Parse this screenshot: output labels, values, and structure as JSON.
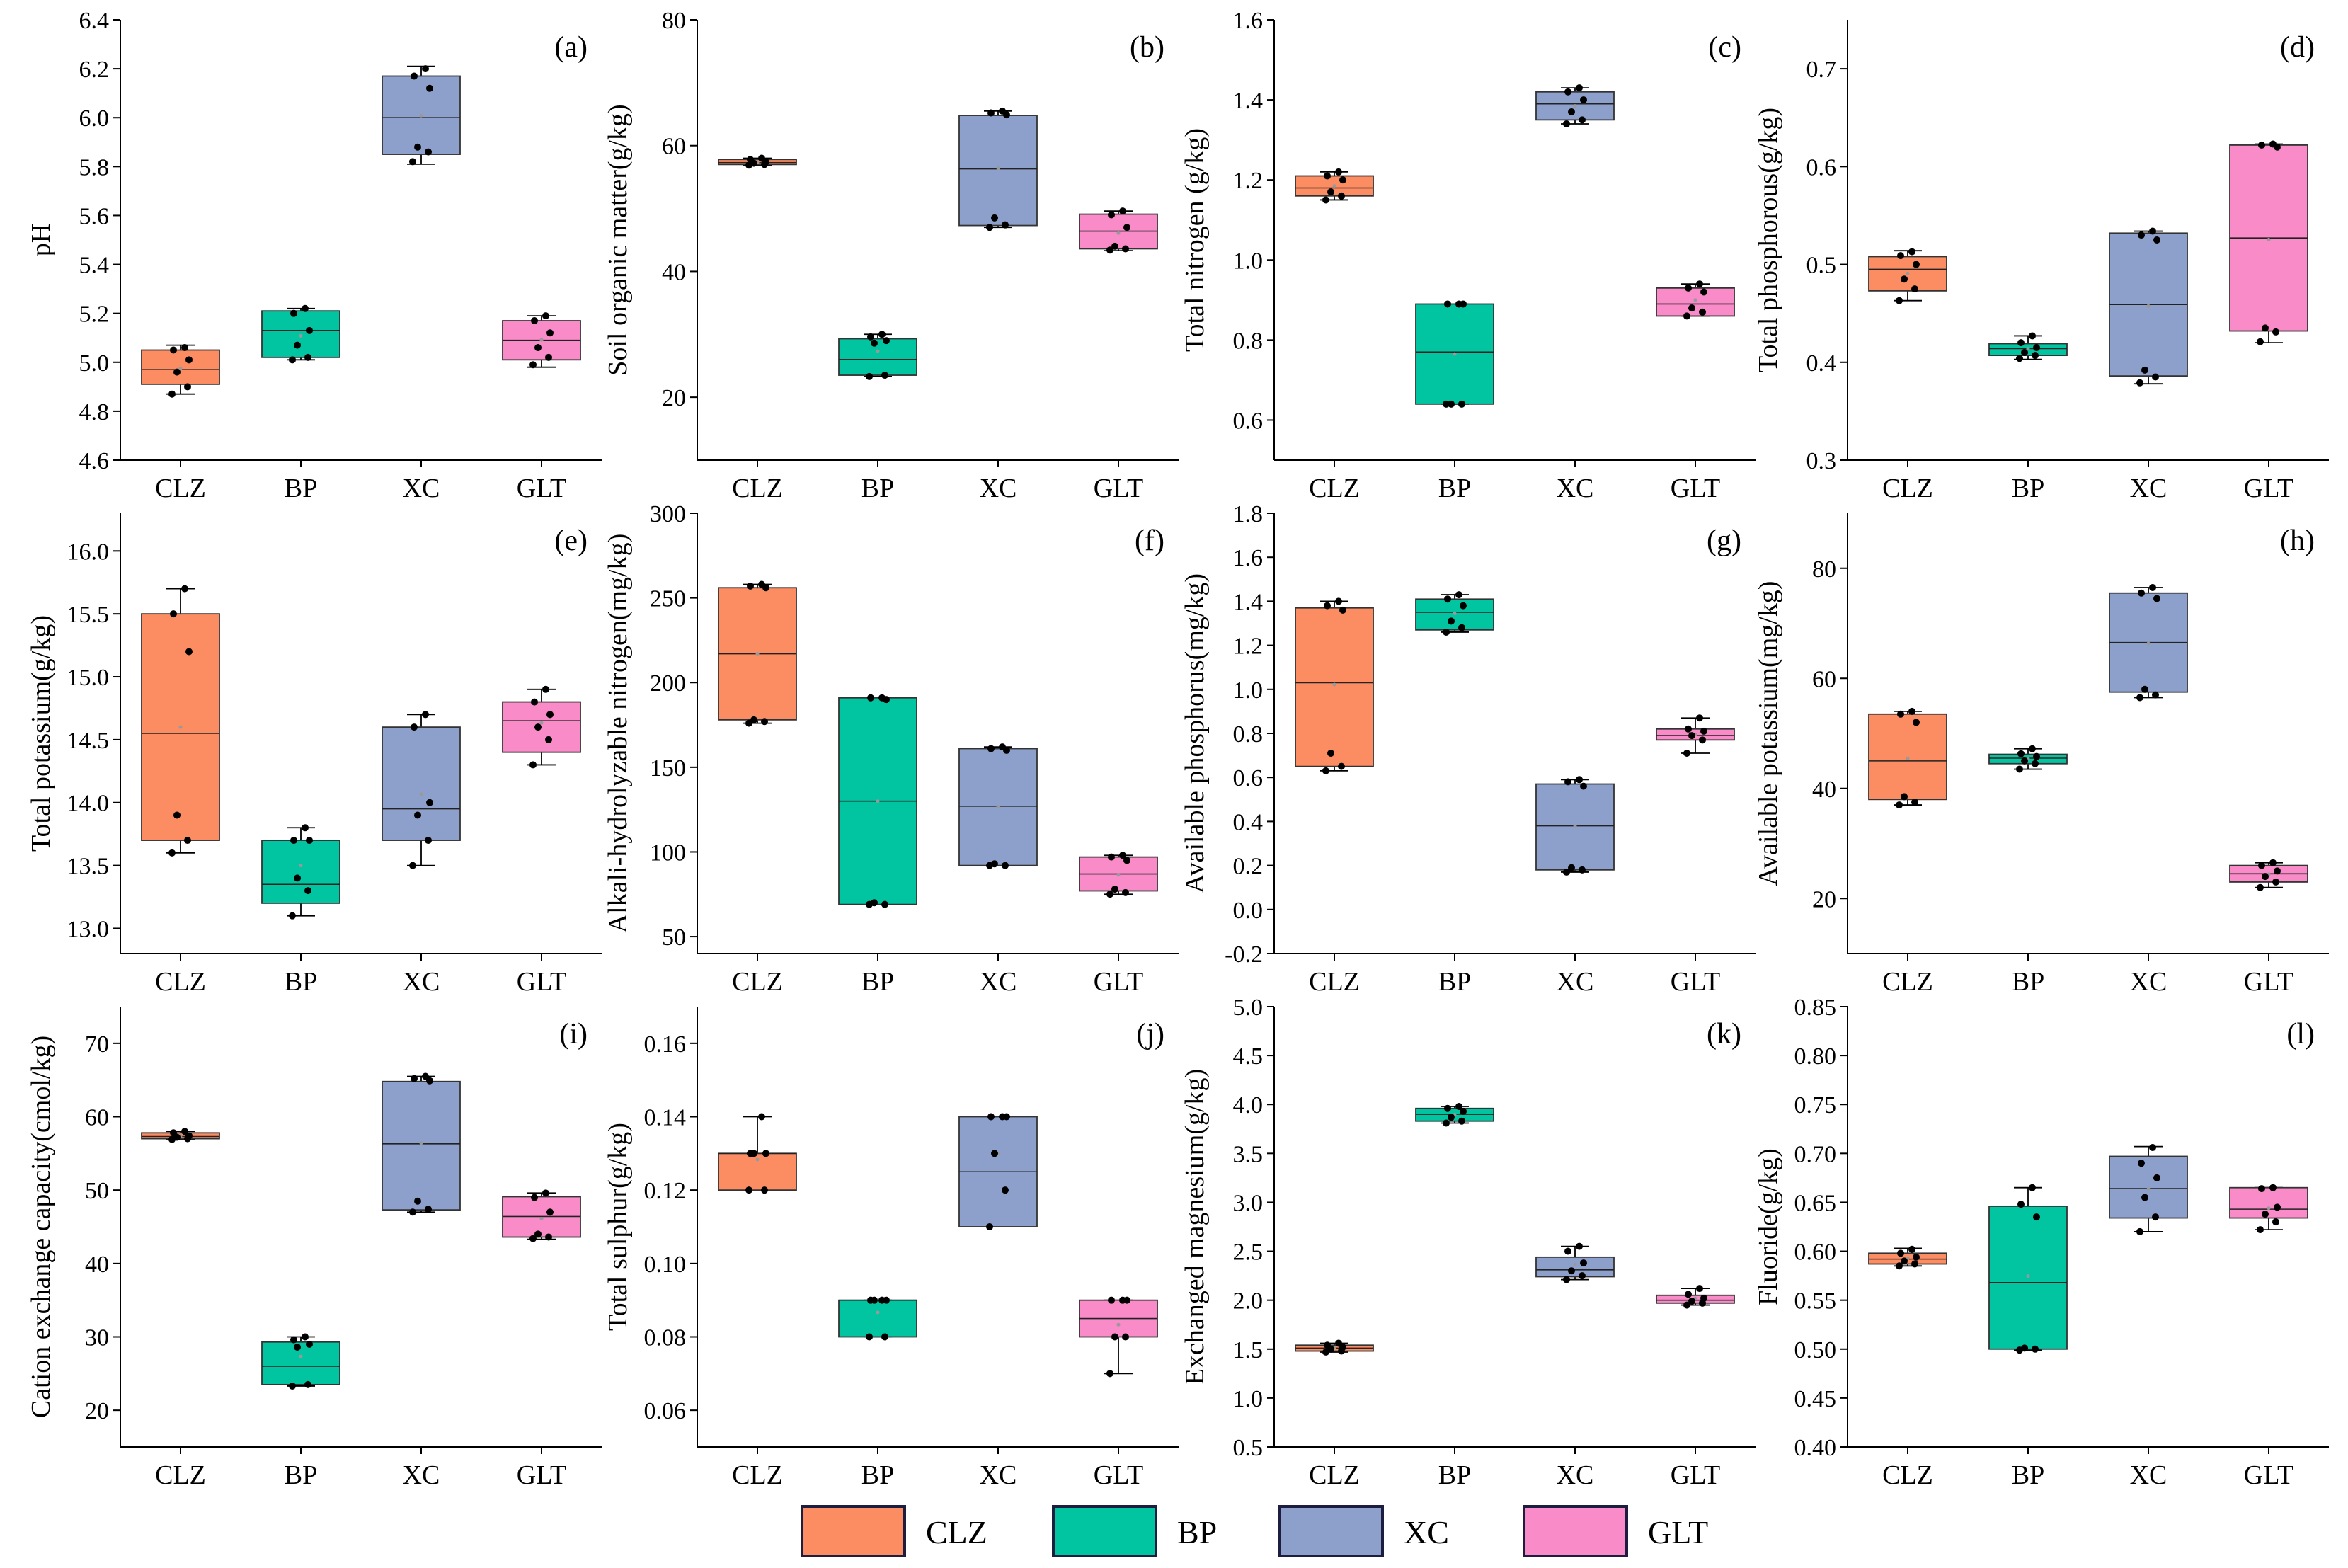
{
  "colors": {
    "CLZ": "#fc8d62",
    "BP": "#00c5a0",
    "XC": "#8da0cb",
    "GLT": "#f88bc8",
    "axis": "#000000"
  },
  "legend": {
    "items": [
      {
        "name": "CLZ",
        "label": "CLZ"
      },
      {
        "name": "BP",
        "label": "BP"
      },
      {
        "name": "XC",
        "label": "XC"
      },
      {
        "name": "GLT",
        "label": "GLT"
      }
    ]
  },
  "chart_data": [
    {
      "type": "box",
      "letter": "(a)",
      "ylabel": "pH",
      "ylim": [
        4.6,
        6.4
      ],
      "yticks": [
        4.6,
        4.8,
        5.0,
        5.2,
        5.4,
        5.6,
        5.8,
        6.0,
        6.2,
        6.4
      ],
      "decimals": 1,
      "categories": [
        "CLZ",
        "BP",
        "XC",
        "GLT"
      ],
      "boxes": [
        {
          "group": "CLZ",
          "min": 4.87,
          "q1": 4.91,
          "median": 4.97,
          "q3": 5.05,
          "max": 5.07,
          "points": [
            4.87,
            4.9,
            4.96,
            5.01,
            5.05,
            5.06
          ]
        },
        {
          "group": "BP",
          "min": 5.01,
          "q1": 5.02,
          "median": 5.13,
          "q3": 5.21,
          "max": 5.22,
          "points": [
            5.01,
            5.02,
            5.07,
            5.13,
            5.2,
            5.22
          ]
        },
        {
          "group": "XC",
          "min": 5.81,
          "q1": 5.85,
          "median": 6.0,
          "q3": 6.17,
          "max": 6.21,
          "points": [
            5.82,
            5.86,
            5.88,
            6.12,
            6.17,
            6.2
          ]
        },
        {
          "group": "GLT",
          "min": 4.98,
          "q1": 5.01,
          "median": 5.09,
          "q3": 5.17,
          "max": 5.19,
          "points": [
            4.99,
            5.02,
            5.06,
            5.12,
            5.17,
            5.19
          ]
        }
      ]
    },
    {
      "type": "box",
      "letter": "(b)",
      "ylabel": "Soil organic matter(g/kg)",
      "ylim": [
        10,
        80
      ],
      "yticks": [
        20,
        40,
        60,
        80
      ],
      "decimals": 0,
      "categories": [
        "CLZ",
        "BP",
        "XC",
        "GLT"
      ],
      "boxes": [
        {
          "group": "CLZ",
          "min": 56.9,
          "q1": 57.0,
          "median": 57.3,
          "q3": 57.8,
          "max": 58.0,
          "points": [
            56.9,
            57.0,
            57.2,
            57.4,
            57.8,
            58.0
          ]
        },
        {
          "group": "BP",
          "min": 23.3,
          "q1": 23.5,
          "median": 26.0,
          "q3": 29.3,
          "max": 30.0,
          "points": [
            23.3,
            23.5,
            28.6,
            29.0,
            29.6,
            30.0
          ]
        },
        {
          "group": "XC",
          "min": 47.0,
          "q1": 47.3,
          "median": 56.3,
          "q3": 64.8,
          "max": 65.5,
          "points": [
            47.0,
            47.4,
            48.5,
            64.9,
            65.2,
            65.5
          ]
        },
        {
          "group": "GLT",
          "min": 43.3,
          "q1": 43.6,
          "median": 46.4,
          "q3": 49.1,
          "max": 49.6,
          "points": [
            43.4,
            43.6,
            44.0,
            47.0,
            49.0,
            49.6
          ]
        }
      ]
    },
    {
      "type": "box",
      "letter": "(c)",
      "ylabel": "Total nitrogen (g/kg)",
      "ylim": [
        0.5,
        1.6
      ],
      "yticks": [
        0.6,
        0.8,
        1.0,
        1.2,
        1.4,
        1.6
      ],
      "decimals": 1,
      "categories": [
        "CLZ",
        "BP",
        "XC",
        "GLT"
      ],
      "boxes": [
        {
          "group": "CLZ",
          "min": 1.15,
          "q1": 1.16,
          "median": 1.18,
          "q3": 1.21,
          "max": 1.22,
          "points": [
            1.15,
            1.16,
            1.17,
            1.2,
            1.21,
            1.22
          ]
        },
        {
          "group": "BP",
          "min": 0.64,
          "q1": 0.64,
          "median": 0.77,
          "q3": 0.89,
          "max": 0.89,
          "points": [
            0.64,
            0.64,
            0.64,
            0.89,
            0.89,
            0.89
          ]
        },
        {
          "group": "XC",
          "min": 1.34,
          "q1": 1.35,
          "median": 1.39,
          "q3": 1.42,
          "max": 1.43,
          "points": [
            1.34,
            1.35,
            1.37,
            1.4,
            1.42,
            1.43
          ]
        },
        {
          "group": "GLT",
          "min": 0.86,
          "q1": 0.86,
          "median": 0.89,
          "q3": 0.93,
          "max": 0.94,
          "points": [
            0.86,
            0.87,
            0.88,
            0.92,
            0.93,
            0.94
          ]
        }
      ]
    },
    {
      "type": "box",
      "letter": "(d)",
      "ylabel": "Total phosphorous(g/kg)",
      "ylim": [
        0.3,
        0.75
      ],
      "yticks": [
        0.3,
        0.4,
        0.5,
        0.6,
        0.7
      ],
      "decimals": 1,
      "categories": [
        "CLZ",
        "BP",
        "XC",
        "GLT"
      ],
      "boxes": [
        {
          "group": "CLZ",
          "min": 0.463,
          "q1": 0.473,
          "median": 0.495,
          "q3": 0.508,
          "max": 0.514,
          "points": [
            0.463,
            0.475,
            0.485,
            0.5,
            0.509,
            0.513
          ]
        },
        {
          "group": "BP",
          "min": 0.403,
          "q1": 0.407,
          "median": 0.414,
          "q3": 0.419,
          "max": 0.427,
          "points": [
            0.404,
            0.407,
            0.41,
            0.415,
            0.42,
            0.427
          ]
        },
        {
          "group": "XC",
          "min": 0.378,
          "q1": 0.386,
          "median": 0.459,
          "q3": 0.532,
          "max": 0.534,
          "points": [
            0.379,
            0.385,
            0.392,
            0.525,
            0.53,
            0.534
          ]
        },
        {
          "group": "GLT",
          "min": 0.42,
          "q1": 0.432,
          "median": 0.527,
          "q3": 0.622,
          "max": 0.623,
          "points": [
            0.421,
            0.431,
            0.435,
            0.62,
            0.622,
            0.623
          ]
        }
      ]
    },
    {
      "type": "box",
      "letter": "(e)",
      "ylabel": "Total potassium(g/kg)",
      "ylim": [
        12.8,
        16.3
      ],
      "yticks": [
        13.0,
        13.5,
        14.0,
        14.5,
        15.0,
        15.5,
        16.0
      ],
      "decimals": 1,
      "categories": [
        "CLZ",
        "BP",
        "XC",
        "GLT"
      ],
      "boxes": [
        {
          "group": "CLZ",
          "min": 13.6,
          "q1": 13.7,
          "median": 14.55,
          "q3": 15.5,
          "max": 15.7,
          "points": [
            13.6,
            13.7,
            13.9,
            15.2,
            15.5,
            15.7
          ]
        },
        {
          "group": "BP",
          "min": 13.1,
          "q1": 13.2,
          "median": 13.35,
          "q3": 13.7,
          "max": 13.8,
          "points": [
            13.1,
            13.3,
            13.4,
            13.7,
            13.7,
            13.8
          ]
        },
        {
          "group": "XC",
          "min": 13.5,
          "q1": 13.7,
          "median": 13.95,
          "q3": 14.6,
          "max": 14.7,
          "points": [
            13.5,
            13.7,
            13.9,
            14.0,
            14.6,
            14.7
          ]
        },
        {
          "group": "GLT",
          "min": 14.3,
          "q1": 14.4,
          "median": 14.65,
          "q3": 14.8,
          "max": 14.9,
          "points": [
            14.3,
            14.5,
            14.6,
            14.7,
            14.8,
            14.9
          ]
        }
      ]
    },
    {
      "type": "box",
      "letter": "(f)",
      "ylabel": "Alkali-hydrolyzable nitrogen(mg/kg)",
      "ylim": [
        40,
        300
      ],
      "yticks": [
        50,
        100,
        150,
        200,
        250,
        300
      ],
      "decimals": 0,
      "categories": [
        "CLZ",
        "BP",
        "XC",
        "GLT"
      ],
      "boxes": [
        {
          "group": "CLZ",
          "min": 176,
          "q1": 178,
          "median": 217,
          "q3": 256,
          "max": 258,
          "points": [
            176,
            177,
            178,
            256,
            257,
            258
          ]
        },
        {
          "group": "BP",
          "min": 69,
          "q1": 69,
          "median": 130,
          "q3": 191,
          "max": 191,
          "points": [
            69,
            69,
            70,
            190,
            191,
            191
          ]
        },
        {
          "group": "XC",
          "min": 92,
          "q1": 92,
          "median": 127,
          "q3": 161,
          "max": 162,
          "points": [
            92,
            92,
            93,
            160,
            161,
            162
          ]
        },
        {
          "group": "GLT",
          "min": 75,
          "q1": 77,
          "median": 87,
          "q3": 97,
          "max": 98,
          "points": [
            75,
            76,
            78,
            95,
            97,
            98
          ]
        }
      ]
    },
    {
      "type": "box",
      "letter": "(g)",
      "ylabel": "Available phosphorus(mg/kg)",
      "ylim": [
        -0.2,
        1.8
      ],
      "yticks": [
        -0.2,
        0.0,
        0.2,
        0.4,
        0.6,
        0.8,
        1.0,
        1.2,
        1.4,
        1.6,
        1.8
      ],
      "decimals": 1,
      "categories": [
        "CLZ",
        "BP",
        "XC",
        "GLT"
      ],
      "boxes": [
        {
          "group": "CLZ",
          "min": 0.63,
          "q1": 0.65,
          "median": 1.03,
          "q3": 1.37,
          "max": 1.4,
          "points": [
            0.63,
            0.65,
            0.71,
            1.36,
            1.38,
            1.4
          ]
        },
        {
          "group": "BP",
          "min": 1.26,
          "q1": 1.27,
          "median": 1.35,
          "q3": 1.41,
          "max": 1.43,
          "points": [
            1.26,
            1.28,
            1.31,
            1.38,
            1.41,
            1.43
          ]
        },
        {
          "group": "XC",
          "min": 0.17,
          "q1": 0.18,
          "median": 0.38,
          "q3": 0.57,
          "max": 0.59,
          "points": [
            0.17,
            0.18,
            0.19,
            0.56,
            0.58,
            0.59
          ]
        },
        {
          "group": "GLT",
          "min": 0.71,
          "q1": 0.77,
          "median": 0.79,
          "q3": 0.82,
          "max": 0.87,
          "points": [
            0.71,
            0.77,
            0.79,
            0.81,
            0.82,
            0.87
          ]
        }
      ]
    },
    {
      "type": "box",
      "letter": "(h)",
      "ylabel": "Available potassium(mg/kg)",
      "ylim": [
        10,
        90
      ],
      "yticks": [
        20,
        40,
        60,
        80
      ],
      "decimals": 0,
      "categories": [
        "CLZ",
        "BP",
        "XC",
        "GLT"
      ],
      "boxes": [
        {
          "group": "CLZ",
          "min": 37,
          "q1": 38,
          "median": 45,
          "q3": 53.5,
          "max": 54,
          "points": [
            37,
            37.5,
            38.5,
            52,
            53.5,
            54
          ]
        },
        {
          "group": "BP",
          "min": 43.5,
          "q1": 44.5,
          "median": 45.5,
          "q3": 46.2,
          "max": 47.2,
          "points": [
            43.5,
            44.5,
            45,
            45.8,
            46.3,
            47.2
          ]
        },
        {
          "group": "XC",
          "min": 56.5,
          "q1": 57.5,
          "median": 66.5,
          "q3": 75.5,
          "max": 76.5,
          "points": [
            56.5,
            57,
            58,
            74.5,
            75.5,
            76.5
          ]
        },
        {
          "group": "GLT",
          "min": 22,
          "q1": 23,
          "median": 24.5,
          "q3": 26,
          "max": 26.5,
          "points": [
            22,
            23,
            24,
            25,
            26,
            26.5
          ]
        }
      ]
    },
    {
      "type": "box",
      "letter": "(i)",
      "ylabel": "Cation exchange capacity(cmol/kg)",
      "ylim": [
        15,
        75
      ],
      "yticks": [
        20,
        30,
        40,
        50,
        60,
        70
      ],
      "decimals": 0,
      "categories": [
        "CLZ",
        "BP",
        "XC",
        "GLT"
      ],
      "boxes": [
        {
          "group": "CLZ",
          "min": 56.9,
          "q1": 57.0,
          "median": 57.3,
          "q3": 57.8,
          "max": 58.0,
          "points": [
            56.9,
            57.0,
            57.2,
            57.4,
            57.8,
            58.0
          ]
        },
        {
          "group": "BP",
          "min": 23.3,
          "q1": 23.5,
          "median": 26.0,
          "q3": 29.3,
          "max": 30.0,
          "points": [
            23.3,
            23.5,
            28.6,
            29.0,
            29.6,
            30.0
          ]
        },
        {
          "group": "XC",
          "min": 47.0,
          "q1": 47.3,
          "median": 56.3,
          "q3": 64.8,
          "max": 65.5,
          "points": [
            47.0,
            47.4,
            48.5,
            64.9,
            65.2,
            65.5
          ]
        },
        {
          "group": "GLT",
          "min": 43.3,
          "q1": 43.6,
          "median": 46.4,
          "q3": 49.1,
          "max": 49.6,
          "points": [
            43.4,
            43.6,
            44.0,
            47.0,
            49.0,
            49.6
          ]
        }
      ]
    },
    {
      "type": "box",
      "letter": "(j)",
      "ylabel": "Total sulphur(g/kg)",
      "ylim": [
        0.05,
        0.17
      ],
      "yticks": [
        0.06,
        0.08,
        0.1,
        0.12,
        0.14,
        0.16
      ],
      "decimals": 2,
      "categories": [
        "CLZ",
        "BP",
        "XC",
        "GLT"
      ],
      "boxes": [
        {
          "group": "CLZ",
          "min": 0.12,
          "q1": 0.12,
          "median": 0.13,
          "q3": 0.13,
          "max": 0.14,
          "points": [
            0.12,
            0.12,
            0.13,
            0.13,
            0.13,
            0.14
          ]
        },
        {
          "group": "BP",
          "min": 0.08,
          "q1": 0.08,
          "median": 0.09,
          "q3": 0.09,
          "max": 0.09,
          "points": [
            0.08,
            0.08,
            0.09,
            0.09,
            0.09,
            0.09
          ]
        },
        {
          "group": "XC",
          "min": 0.11,
          "q1": 0.11,
          "median": 0.125,
          "q3": 0.14,
          "max": 0.14,
          "points": [
            0.11,
            0.12,
            0.13,
            0.14,
            0.14,
            0.14
          ]
        },
        {
          "group": "GLT",
          "min": 0.07,
          "q1": 0.08,
          "median": 0.085,
          "q3": 0.09,
          "max": 0.09,
          "points": [
            0.07,
            0.08,
            0.08,
            0.09,
            0.09,
            0.09
          ]
        }
      ]
    },
    {
      "type": "box",
      "letter": "(k)",
      "ylabel": "Exchanged magnesium(g/kg)",
      "ylim": [
        0.5,
        5.0
      ],
      "yticks": [
        0.5,
        1.0,
        1.5,
        2.0,
        2.5,
        3.0,
        3.5,
        4.0,
        4.5,
        5.0
      ],
      "decimals": 1,
      "categories": [
        "CLZ",
        "BP",
        "XC",
        "GLT"
      ],
      "boxes": [
        {
          "group": "CLZ",
          "min": 1.47,
          "q1": 1.48,
          "median": 1.51,
          "q3": 1.54,
          "max": 1.56,
          "points": [
            1.47,
            1.48,
            1.5,
            1.52,
            1.54,
            1.56
          ]
        },
        {
          "group": "BP",
          "min": 3.81,
          "q1": 3.83,
          "median": 3.9,
          "q3": 3.96,
          "max": 3.98,
          "points": [
            3.81,
            3.83,
            3.87,
            3.93,
            3.96,
            3.98
          ]
        },
        {
          "group": "XC",
          "min": 2.21,
          "q1": 2.24,
          "median": 2.31,
          "q3": 2.44,
          "max": 2.55,
          "points": [
            2.21,
            2.25,
            2.3,
            2.38,
            2.5,
            2.55
          ]
        },
        {
          "group": "GLT",
          "min": 1.95,
          "q1": 1.97,
          "median": 2.0,
          "q3": 2.05,
          "max": 2.12,
          "points": [
            1.95,
            1.97,
            1.99,
            2.02,
            2.06,
            2.12
          ]
        }
      ]
    },
    {
      "type": "box",
      "letter": "(l)",
      "ylabel": "Fluoride(g/kg)",
      "ylim": [
        0.4,
        0.85
      ],
      "yticks": [
        0.4,
        0.45,
        0.5,
        0.55,
        0.6,
        0.65,
        0.7,
        0.75,
        0.8,
        0.85
      ],
      "decimals": 2,
      "categories": [
        "CLZ",
        "BP",
        "XC",
        "GLT"
      ],
      "boxes": [
        {
          "group": "CLZ",
          "min": 0.585,
          "q1": 0.587,
          "median": 0.592,
          "q3": 0.598,
          "max": 0.603,
          "points": [
            0.585,
            0.587,
            0.59,
            0.594,
            0.598,
            0.602
          ]
        },
        {
          "group": "BP",
          "min": 0.499,
          "q1": 0.5,
          "median": 0.568,
          "q3": 0.646,
          "max": 0.665,
          "points": [
            0.499,
            0.5,
            0.501,
            0.635,
            0.648,
            0.665
          ]
        },
        {
          "group": "XC",
          "min": 0.62,
          "q1": 0.634,
          "median": 0.664,
          "q3": 0.697,
          "max": 0.707,
          "points": [
            0.62,
            0.635,
            0.655,
            0.675,
            0.69,
            0.706
          ]
        },
        {
          "group": "GLT",
          "min": 0.622,
          "q1": 0.634,
          "median": 0.643,
          "q3": 0.665,
          "max": 0.665,
          "points": [
            0.622,
            0.63,
            0.638,
            0.645,
            0.664,
            0.665
          ]
        }
      ]
    }
  ]
}
